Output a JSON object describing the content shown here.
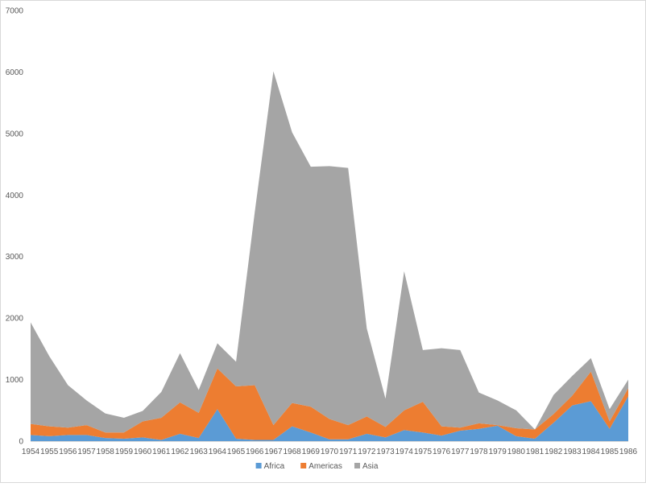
{
  "chart_data": {
    "type": "area",
    "stacked": true,
    "title": "",
    "xlabel": "",
    "ylabel": "",
    "ylim": [
      0,
      7000
    ],
    "y_ticks": [
      0,
      1000,
      2000,
      3000,
      4000,
      5000,
      6000,
      7000
    ],
    "grid": false,
    "legend_position": "bottom",
    "categories": [
      "1954",
      "1955",
      "1956",
      "1957",
      "1958",
      "1959",
      "1960",
      "1961",
      "1962",
      "1963",
      "1964",
      "1965",
      "1966",
      "1967",
      "1968",
      "1969",
      "1970",
      "1971",
      "1972",
      "1973",
      "1974",
      "1975",
      "1976",
      "1977",
      "1978",
      "1979",
      "1980",
      "1981",
      "1982",
      "1983",
      "1984",
      "1985",
      "1986"
    ],
    "series": [
      {
        "name": "Africa",
        "color": "#5B9BD5",
        "values": [
          100,
          80,
          100,
          100,
          50,
          40,
          60,
          20,
          120,
          50,
          520,
          40,
          20,
          20,
          240,
          140,
          30,
          30,
          120,
          60,
          180,
          140,
          90,
          170,
          200,
          250,
          80,
          40,
          300,
          580,
          650,
          200,
          730
        ]
      },
      {
        "name": "Americas",
        "color": "#ED7D31",
        "values": [
          180,
          160,
          120,
          160,
          90,
          100,
          260,
          360,
          510,
          410,
          660,
          850,
          890,
          240,
          380,
          420,
          330,
          230,
          280,
          170,
          320,
          500,
          150,
          50,
          90,
          10,
          130,
          150,
          140,
          160,
          480,
          120,
          130
        ]
      },
      {
        "name": "Asia",
        "color": "#A5A5A5",
        "values": [
          1650,
          1140,
          690,
          400,
          310,
          240,
          170,
          420,
          800,
          370,
          410,
          400,
          2810,
          5750,
          4400,
          3900,
          4110,
          4180,
          1430,
          460,
          2260,
          840,
          1270,
          1260,
          500,
          400,
          290,
          0,
          310,
          320,
          220,
          200,
          140
        ]
      }
    ]
  }
}
